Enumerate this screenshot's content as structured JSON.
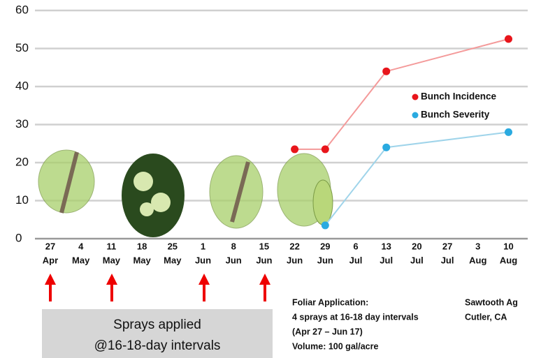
{
  "chart_data": {
    "type": "line",
    "categories": [
      "27",
      "4",
      "11",
      "18",
      "25",
      "1",
      "8",
      "15",
      "22",
      "29",
      "6",
      "13",
      "20",
      "27",
      "3",
      "10"
    ],
    "category_months": [
      "Apr",
      "May",
      "May",
      "May",
      "May",
      "Jun",
      "Jun",
      "Jun",
      "Jun",
      "Jun",
      "Jul",
      "Jul",
      "Jul",
      "Jul",
      "Aug",
      "Aug"
    ],
    "series": [
      {
        "name": "Bunch Incidence",
        "color": "#e8151b",
        "line_color": "#f49a9a",
        "values": [
          null,
          null,
          null,
          null,
          null,
          null,
          null,
          null,
          23.5,
          23.5,
          null,
          44,
          null,
          null,
          null,
          52.5
        ]
      },
      {
        "name": "Bunch Severity",
        "color": "#2aaae0",
        "line_color": "#9fd4ea",
        "values": [
          null,
          null,
          null,
          null,
          null,
          null,
          null,
          null,
          null,
          3.5,
          null,
          24,
          null,
          null,
          null,
          28
        ]
      }
    ],
    "connect_gaps": true,
    "ylim": [
      0,
      60
    ],
    "yticks": [
      0,
      10,
      20,
      30,
      40,
      50,
      60
    ],
    "grid": true,
    "annotations": [
      "Sprays applied",
      "@16-18-day intervals"
    ],
    "notes": [
      "Foliar Application:",
      "4 sprays at 16-18 day intervals",
      "(Apr 27 – Jun 17)",
      "Volume: 100 gal/acre"
    ],
    "source": [
      "Sawtooth Ag",
      "Cutler, CA"
    ]
  }
}
